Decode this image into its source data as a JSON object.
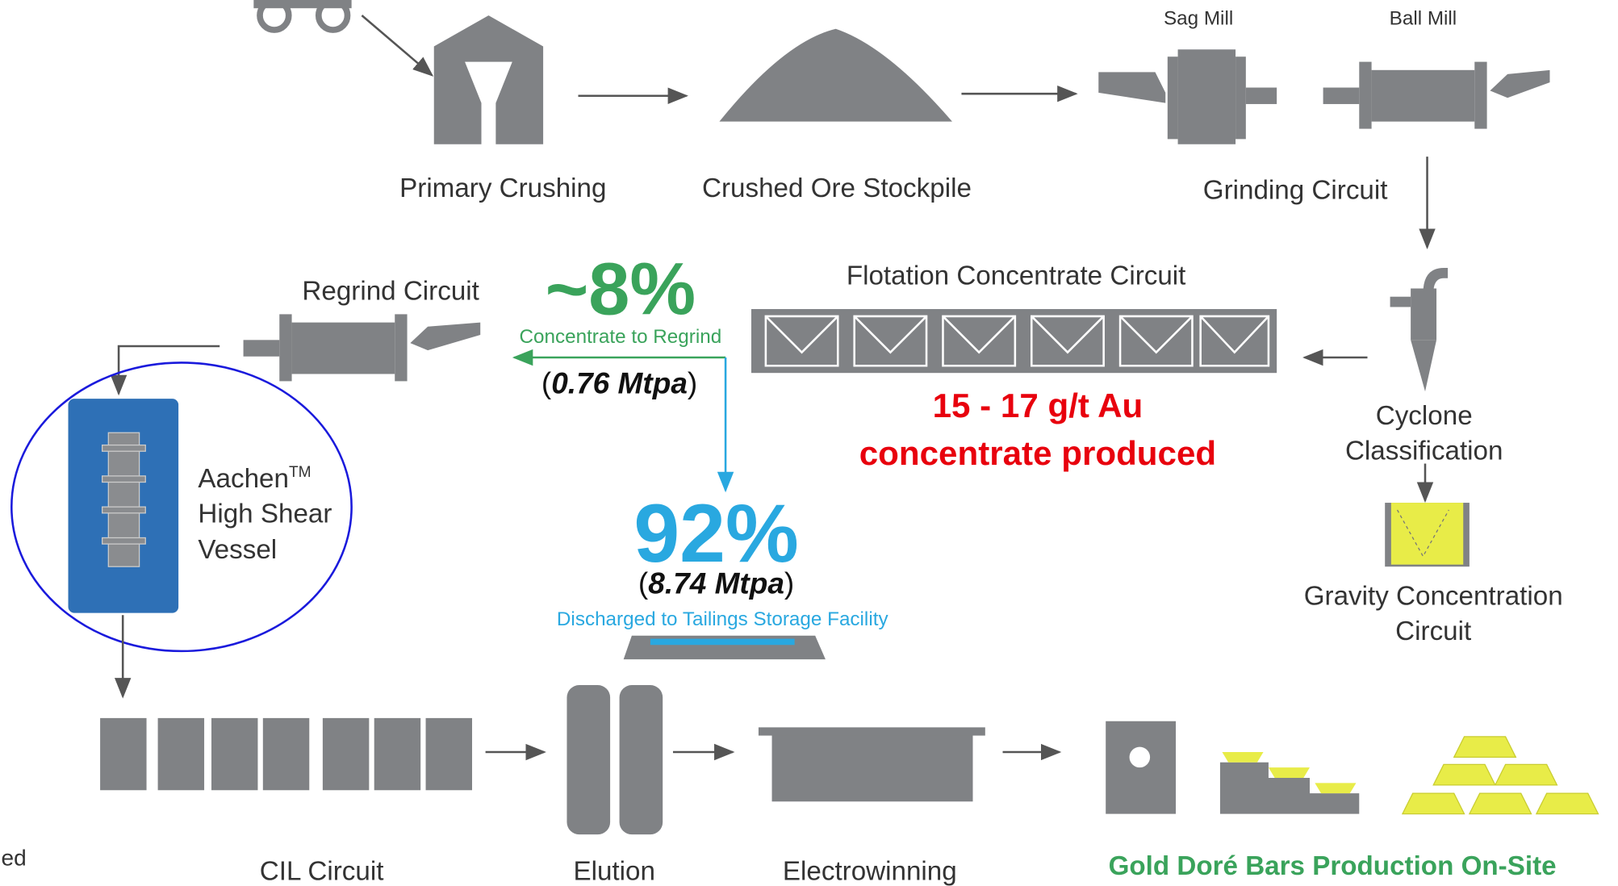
{
  "nodes": {
    "sag_mill": "Sag Mill",
    "ball_mill": "Ball Mill",
    "primary_crushing": "Primary Crushing",
    "stockpile": "Crushed Ore Stockpile",
    "grinding": "Grinding Circuit",
    "regrind": "Regrind Circuit",
    "flotation": "Flotation Concentrate Circuit",
    "regrind_pct": "~8%",
    "regrind_caption": "Concentrate to Regrind",
    "regrind_mtpa": [
      "(",
      "0.76 Mtpa",
      ")"
    ],
    "concentrate": [
      "15 - 17 g/t Au",
      "concentrate produced"
    ],
    "cyclone": [
      "Cyclone",
      "Classification"
    ],
    "aachen": {
      "name": "Aachen",
      "mark": "TM",
      "lines": [
        "High Shear",
        "Vessel"
      ]
    },
    "tailings_pct": "92%",
    "tailings_mtpa": [
      "(",
      "8.74 Mtpa",
      ")"
    ],
    "tailings_caption": "Discharged to Tailings Storage Facility",
    "gravity": [
      "Gravity Concentration",
      "Circuit"
    ],
    "cil": "CIL Circuit",
    "elution": "Elution",
    "electrowinning": "Electrowinning",
    "gold": "Gold Doré Bars Production On-Site",
    "edge_text": "ed"
  }
}
